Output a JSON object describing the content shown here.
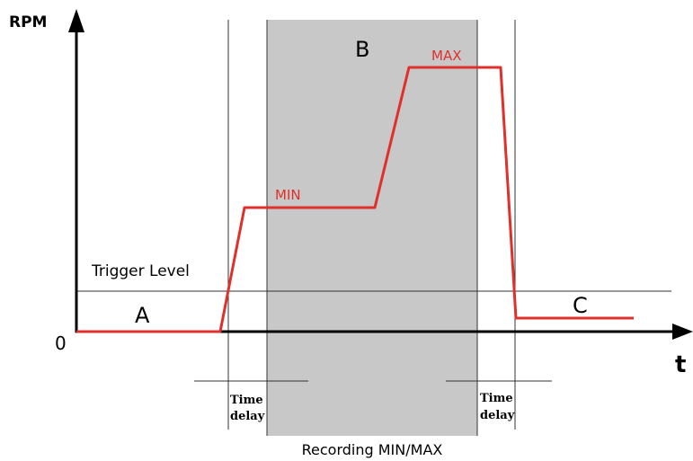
{
  "axes": {
    "y_label": "RPM",
    "x_label": "t",
    "origin_label": "0"
  },
  "regions": {
    "a": "A",
    "b": "B",
    "c": "C"
  },
  "trigger_label": "Trigger Level",
  "curve_labels": {
    "min": "MIN",
    "max": "MAX"
  },
  "time_delay_left": {
    "line1": "Time",
    "line2": "delay"
  },
  "time_delay_right": {
    "line1": "Time",
    "line2": "delay"
  },
  "recording_label": "Recording MIN/MAX",
  "colors": {
    "curve": "#e0302b",
    "recording_band": "#c8c8c8"
  }
}
